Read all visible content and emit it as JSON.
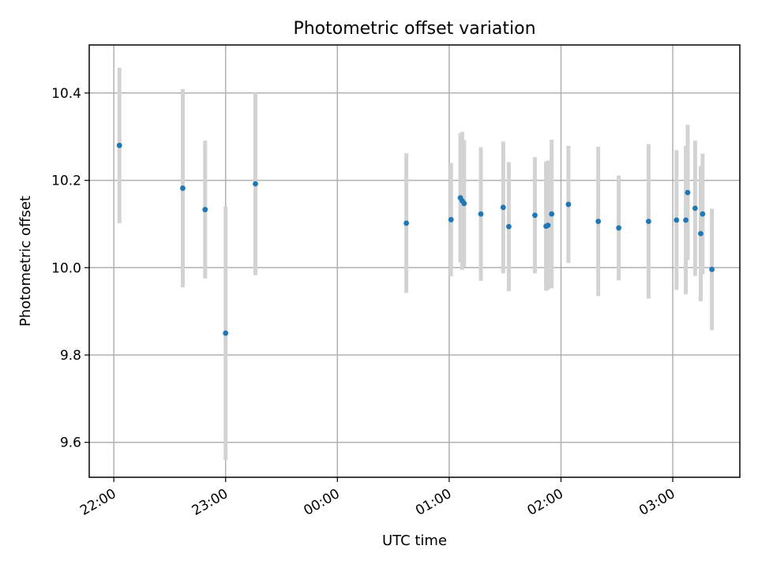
{
  "chart_data": {
    "type": "scatter",
    "title": "Photometric offset variation",
    "xlabel": "UTC time",
    "ylabel": "Photometric offset",
    "x_ticks": [
      "22:00",
      "23:00",
      "00:00",
      "01:00",
      "02:00",
      "03:00"
    ],
    "x_tick_hours": [
      22,
      23,
      24,
      25,
      26,
      27
    ],
    "xlim_hours": [
      21.78,
      27.6
    ],
    "y_ticks": [
      "9.6",
      "9.8",
      "10.0",
      "10.2",
      "10.4"
    ],
    "y_tick_values": [
      9.6,
      9.8,
      10.0,
      10.2,
      10.4
    ],
    "ylim": [
      9.52,
      10.51
    ],
    "grid": true,
    "point_color": "#1f77b4",
    "errorbar_color": "#d3d3d3",
    "points": [
      {
        "time": "22:03",
        "y": 10.28,
        "err": 0.178
      },
      {
        "time": "22:37",
        "y": 10.182,
        "err": 0.227
      },
      {
        "time": "22:49",
        "y": 10.133,
        "err": 0.158
      },
      {
        "time": "23:00",
        "y": 9.85,
        "err": 0.29
      },
      {
        "time": "23:16",
        "y": 10.192,
        "err": 0.209
      },
      {
        "time": "00:37",
        "y": 10.102,
        "err": 0.16
      },
      {
        "time": "01:01",
        "y": 10.11,
        "err": 0.13
      },
      {
        "time": "01:06",
        "y": 10.16,
        "err": 0.148
      },
      {
        "time": "01:07",
        "y": 10.153,
        "err": 0.158
      },
      {
        "time": "01:08",
        "y": 10.147,
        "err": 0.145
      },
      {
        "time": "01:17",
        "y": 10.123,
        "err": 0.153
      },
      {
        "time": "01:29",
        "y": 10.138,
        "err": 0.151
      },
      {
        "time": "01:32",
        "y": 10.094,
        "err": 0.148
      },
      {
        "time": "01:46",
        "y": 10.12,
        "err": 0.133
      },
      {
        "time": "01:52",
        "y": 10.095,
        "err": 0.148
      },
      {
        "time": "01:53",
        "y": 10.097,
        "err": 0.148
      },
      {
        "time": "01:55",
        "y": 10.123,
        "err": 0.17
      },
      {
        "time": "02:04",
        "y": 10.145,
        "err": 0.134
      },
      {
        "time": "02:20",
        "y": 10.106,
        "err": 0.171
      },
      {
        "time": "02:31",
        "y": 10.091,
        "err": 0.12
      },
      {
        "time": "02:47",
        "y": 10.106,
        "err": 0.177
      },
      {
        "time": "03:02",
        "y": 10.109,
        "err": 0.16
      },
      {
        "time": "03:07",
        "y": 10.109,
        "err": 0.17
      },
      {
        "time": "03:08",
        "y": 10.172,
        "err": 0.155
      },
      {
        "time": "03:12",
        "y": 10.136,
        "err": 0.155
      },
      {
        "time": "03:15",
        "y": 10.078,
        "err": 0.155
      },
      {
        "time": "03:16",
        "y": 10.123,
        "err": 0.138
      },
      {
        "time": "03:21",
        "y": 9.996,
        "err": 0.139
      }
    ]
  }
}
